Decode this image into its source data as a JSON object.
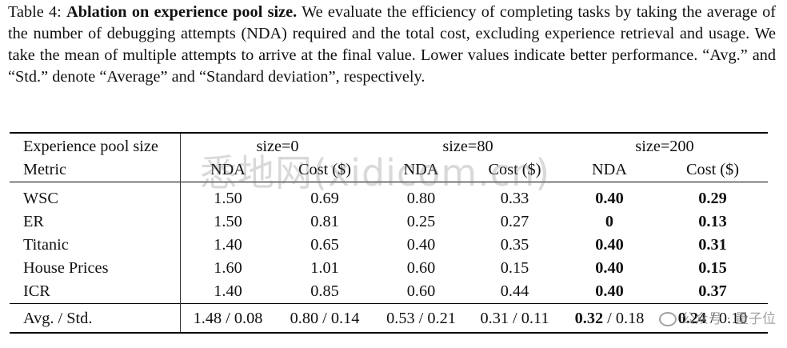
{
  "caption": {
    "label": "Table 4:",
    "bold_title": "Ablation on experience pool size.",
    "text": "We evaluate the efficiency of completing tasks by taking the average of the number of debugging attempts (NDA) required and the total cost, excluding experience retrieval and usage. We take the mean of multiple attempts to arrive at the final value. Lower values indicate better performance. “Avg.” and “Std.” denote “Average” and “Standard deviation”, respectively."
  },
  "table": {
    "header_row1": {
      "label": "Experience pool size",
      "groups": [
        "size=0",
        "size=80",
        "size=200"
      ]
    },
    "header_row2": {
      "label": "Metric",
      "cols": [
        "NDA",
        "Cost ($)",
        "NDA",
        "Cost ($)",
        "NDA",
        "Cost ($)"
      ]
    },
    "rows": [
      {
        "name": "WSC",
        "values": [
          "1.50",
          "0.69",
          "0.80",
          "0.33",
          "0.40",
          "0.29"
        ],
        "bold": [
          false,
          false,
          false,
          false,
          true,
          true
        ]
      },
      {
        "name": "ER",
        "values": [
          "1.50",
          "0.81",
          "0.25",
          "0.27",
          "0",
          "0.13"
        ],
        "bold": [
          false,
          false,
          false,
          false,
          true,
          true
        ]
      },
      {
        "name": "Titanic",
        "values": [
          "1.40",
          "0.65",
          "0.40",
          "0.35",
          "0.40",
          "0.31"
        ],
        "bold": [
          false,
          false,
          false,
          false,
          true,
          true
        ]
      },
      {
        "name": "House Prices",
        "values": [
          "1.60",
          "1.01",
          "0.60",
          "0.15",
          "0.40",
          "0.15"
        ],
        "bold": [
          false,
          false,
          false,
          false,
          true,
          true
        ]
      },
      {
        "name": "ICR",
        "values": [
          "1.40",
          "0.85",
          "0.60",
          "0.44",
          "0.40",
          "0.37"
        ],
        "bold": [
          false,
          false,
          false,
          false,
          true,
          true
        ]
      }
    ],
    "avg_row": {
      "name": "Avg. / Std.",
      "cells": [
        {
          "a": "1.48",
          "s": "0.08",
          "bold": false
        },
        {
          "a": "0.80",
          "s": "0.14",
          "bold": false
        },
        {
          "a": "0.53",
          "s": "0.21",
          "bold": false
        },
        {
          "a": "0.31",
          "s": "0.11",
          "bold": false
        },
        {
          "a": "0.32",
          "s": "0.18",
          "bold": true
        },
        {
          "a": "0.24",
          "s": "0.10",
          "bold": true
        }
      ]
    }
  },
  "watermarks": {
    "site": "悉地网(xidicom.cn)",
    "wechat": "公众号 · 量子位"
  }
}
